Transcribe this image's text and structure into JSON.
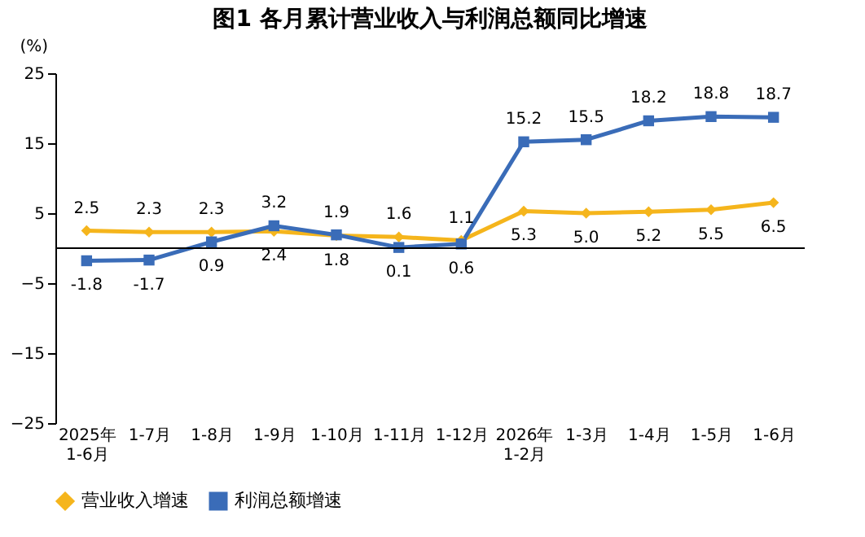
{
  "chart_data": {
    "type": "line",
    "title": "图1  各月累计营业收入与利润总额同比增速",
    "ylabel": "(%)",
    "categories": [
      "2025年\n1-6月",
      "1-7月",
      "1-8月",
      "1-9月",
      "1-10月",
      "1-11月",
      "1-12月",
      "2026年\n1-2月",
      "1-3月",
      "1-4月",
      "1-5月",
      "1-6月"
    ],
    "series": [
      {
        "name": "营业收入增速",
        "color": "#f5b51c",
        "marker": "diamond",
        "values": [
          2.5,
          2.3,
          2.3,
          2.4,
          1.8,
          1.6,
          1.1,
          5.3,
          5.0,
          5.2,
          5.5,
          6.5
        ],
        "value_labels": [
          "2.5",
          "2.3",
          "2.3",
          "2.4",
          "1.8",
          "1.6",
          "1.1",
          "5.3",
          "5.0",
          "5.2",
          "5.5",
          "6.5"
        ]
      },
      {
        "name": "利润总额增速",
        "color": "#3a6cb8",
        "marker": "square",
        "values": [
          -1.8,
          -1.7,
          0.9,
          3.2,
          1.9,
          0.1,
          0.6,
          15.2,
          15.5,
          18.2,
          18.8,
          18.7
        ]
      }
    ],
    "ylim": [
      -25,
      25
    ],
    "yticks": [
      -25,
      -15,
      -5,
      5,
      15,
      25
    ],
    "ref_lines": [
      {
        "axis": "y",
        "value": 0,
        "color": "#000000"
      }
    ],
    "data_labels": true,
    "legend": "bottom",
    "grid": false
  }
}
